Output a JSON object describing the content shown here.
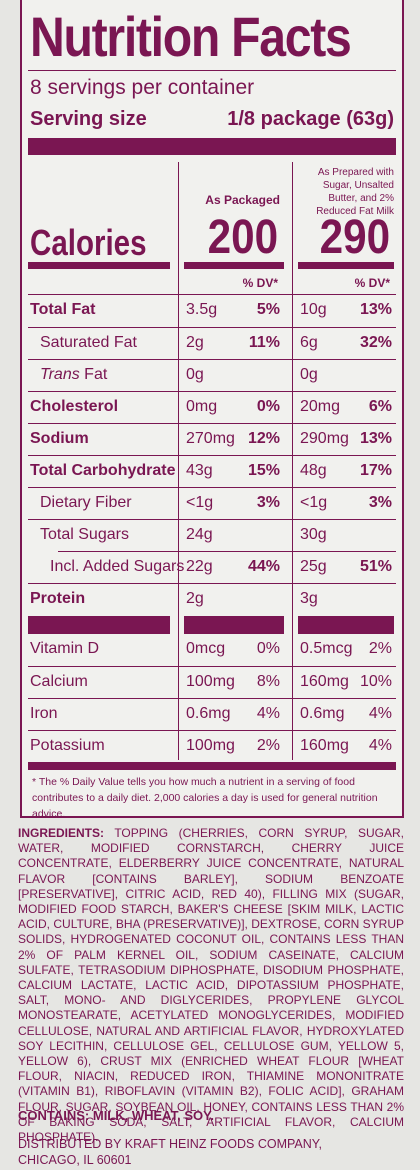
{
  "label": {
    "title": "Nutrition Facts",
    "servings": "8 servings per container",
    "serving_size_label": "Serving size",
    "serving_size_value": "1/8 package (63g)",
    "col1_header": "As Packaged",
    "col2_header": "As Prepared with Sugar, Unsalted Butter, and 2% Reduced Fat Milk",
    "calories_label": "Calories",
    "calories_packaged": "200",
    "calories_prepared": "290",
    "dv_header": "% DV*",
    "nutrients": [
      {
        "name": "Total Fat",
        "amt1": "3.5g",
        "dv1": "5%",
        "amt2": "10g",
        "dv2": "13%"
      },
      {
        "name": "Saturated Fat",
        "amt1": "2g",
        "dv1": "11%",
        "amt2": "6g",
        "dv2": "32%"
      },
      {
        "name_italic": "Trans",
        "name_rest": " Fat",
        "amt1": "0g",
        "amt2": "0g"
      },
      {
        "name": "Cholesterol",
        "amt1": "0mg",
        "dv1": "0%",
        "amt2": "20mg",
        "dv2": "6%"
      },
      {
        "name": "Sodium",
        "amt1": "270mg",
        "dv1": "12%",
        "amt2": "290mg",
        "dv2": "13%"
      },
      {
        "name": "Total Carbohydrate",
        "amt1": "43g",
        "dv1": "15%",
        "amt2": "48g",
        "dv2": "17%"
      },
      {
        "name": "Dietary Fiber",
        "amt1": "<1g",
        "dv1": "3%",
        "amt2": "<1g",
        "dv2": "3%"
      },
      {
        "name": "Total Sugars",
        "amt1": "24g",
        "amt2": "30g"
      },
      {
        "name": "Incl. Added Sugars",
        "amt1": "22g",
        "dv1": "44%",
        "amt2": "25g",
        "dv2": "51%"
      },
      {
        "name": "Protein",
        "amt1": "2g",
        "amt2": "3g"
      }
    ],
    "vitamins": [
      {
        "name": "Vitamin D",
        "amt1": "0mcg",
        "dv1": "0%",
        "amt2": "0.5mcg",
        "dv2": "2%"
      },
      {
        "name": "Calcium",
        "amt1": "100mg",
        "dv1": "8%",
        "amt2": "160mg",
        "dv2": "10%"
      },
      {
        "name": "Iron",
        "amt1": "0.6mg",
        "dv1": "4%",
        "amt2": "0.6mg",
        "dv2": "4%"
      },
      {
        "name": "Potassium",
        "amt1": "100mg",
        "dv1": "2%",
        "amt2": "160mg",
        "dv2": "4%"
      }
    ],
    "footnote": "* The % Daily Value tells you how much a nutrient in a serving of food contributes to a daily diet. 2,000 calories a day is used for general nutrition advice."
  },
  "ingredients": {
    "heading": "INGREDIENTS:",
    "text": " TOPPING (CHERRIES, CORN SYRUP, SUGAR, WATER, MODIFIED CORNSTARCH, CHERRY JUICE CONCENTRATE, ELDERBERRY JUICE CONCENTRATE, NATURAL FLAVOR [CONTAINS BARLEY], SODIUM BENZOATE [PRESERVATIVE], CITRIC ACID, RED 40), FILLING MIX (SUGAR, MODIFIED FOOD STARCH, BAKER'S CHEESE [SKIM MILK, LACTIC ACID, CULTURE, BHA (PRESERVATIVE)], DEXTROSE, CORN SYRUP SOLIDS, HYDROGENATED COCONUT OIL, CONTAINS LESS THAN 2% OF PALM KERNEL OIL, SODIUM CASEINATE, CALCIUM SULFATE, TETRASODIUM DIPHOSPHATE, DISODIUM PHOSPHATE, CALCIUM LACTATE, LACTIC ACID, DIPOTASSIUM PHOSPHATE, SALT, MONO- AND DIGLYCERIDES, PROPYLENE GLYCOL MONOSTEARATE, ACETYLATED MONOGLYCERIDES, MODIFIED CELLULOSE, NATURAL AND ARTIFICIAL FLAVOR, HYDROXYLATED SOY LECITHIN, CELLULOSE GEL, CELLULOSE GUM, YELLOW 5, YELLOW 6), CRUST MIX (ENRICHED WHEAT FLOUR [WHEAT FLOUR, NIACIN, REDUCED IRON, THIAMINE MONONITRATE (VITAMIN B1), RIBOFLAVIN (VITAMIN B2), FOLIC ACID], GRAHAM FLOUR, SUGAR, SOYBEAN OIL, HONEY, CONTAINS LESS THAN 2% OF BAKING SODA, SALT, ARTIFICIAL FLAVOR, CALCIUM PHOSPHATE).",
    "contains": "CONTAINS: MILK, WHEAT, SOY.",
    "distributor_line1": "DISTRIBUTED BY KRAFT HEINZ FOODS COMPANY,",
    "distributor_line2": "CHICAGO, IL 60601"
  },
  "colors": {
    "accent": "#7a1652",
    "panel": "#f1f1ee",
    "background": "#e6e6e3"
  }
}
